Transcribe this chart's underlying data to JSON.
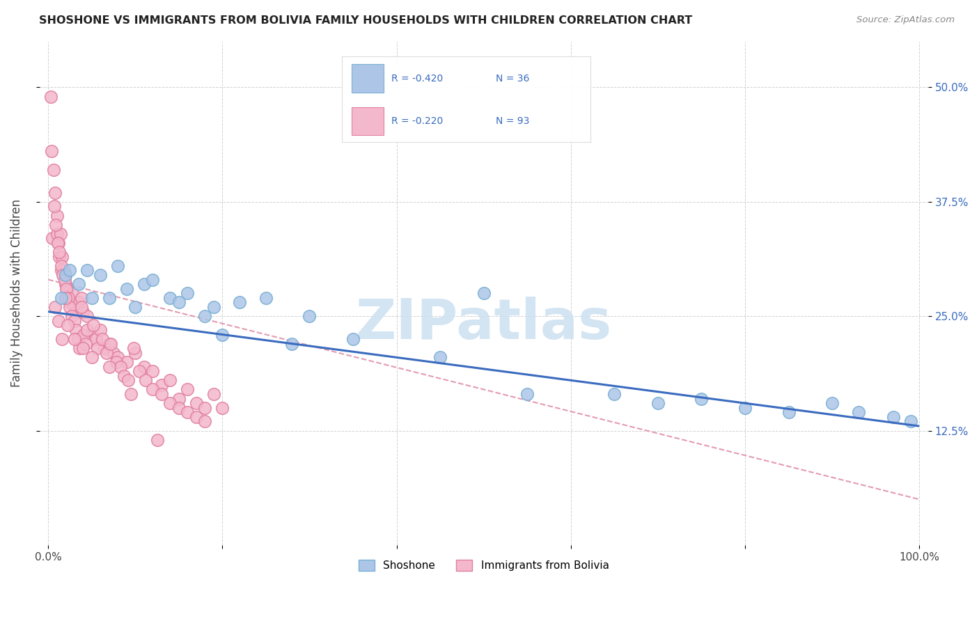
{
  "title": "SHOSHONE VS IMMIGRANTS FROM BOLIVIA FAMILY HOUSEHOLDS WITH CHILDREN CORRELATION CHART",
  "source": "Source: ZipAtlas.com",
  "ylabel": "Family Households with Children",
  "xlim": [
    -1,
    101
  ],
  "ylim": [
    0,
    55
  ],
  "yticks": [
    12.5,
    25.0,
    37.5,
    50.0
  ],
  "yticklabels": [
    "12.5%",
    "25.0%",
    "37.5%",
    "50.0%"
  ],
  "shoshone_color": "#adc6e8",
  "shoshone_edge": "#7aafd4",
  "bolivia_color": "#f4b8cc",
  "bolivia_edge": "#e080a0",
  "blue_line_color": "#3a6bbf",
  "pink_line_color": "#e090a8",
  "legend_color": "#3a6bbf",
  "watermark_color": "#cce0f0",
  "shoshone_x": [
    1.5,
    2.0,
    2.5,
    3.5,
    4.5,
    5.0,
    6.0,
    7.0,
    8.0,
    9.0,
    10.0,
    11.0,
    12.0,
    14.0,
    15.0,
    16.0,
    18.0,
    19.0,
    20.0,
    22.0,
    25.0,
    28.0,
    30.0,
    35.0,
    45.0,
    50.0,
    55.0,
    65.0,
    70.0,
    75.0,
    80.0,
    85.0,
    90.0,
    93.0,
    97.0,
    99.0
  ],
  "shoshone_y": [
    27.0,
    29.5,
    30.0,
    28.5,
    30.0,
    27.0,
    29.5,
    27.0,
    30.5,
    28.0,
    26.0,
    28.5,
    29.0,
    27.0,
    26.5,
    27.5,
    25.0,
    26.0,
    23.0,
    26.5,
    27.0,
    22.0,
    25.0,
    22.5,
    20.5,
    27.5,
    16.5,
    16.5,
    15.5,
    16.0,
    15.0,
    14.5,
    15.5,
    14.5,
    14.0,
    13.5
  ],
  "bolivia_x": [
    0.3,
    0.5,
    0.6,
    0.8,
    1.0,
    1.0,
    1.2,
    1.3,
    1.4,
    1.5,
    1.6,
    1.8,
    2.0,
    2.0,
    2.2,
    2.3,
    2.5,
    2.8,
    3.0,
    3.2,
    3.5,
    3.8,
    4.0,
    4.5,
    5.0,
    5.5,
    6.0,
    6.5,
    7.0,
    7.5,
    8.0,
    9.0,
    10.0,
    11.0,
    12.0,
    13.0,
    14.0,
    15.0,
    16.0,
    17.0,
    18.0,
    0.4,
    0.7,
    0.9,
    1.1,
    1.3,
    1.5,
    1.7,
    1.9,
    2.1,
    2.3,
    2.5,
    2.7,
    3.0,
    3.2,
    3.4,
    3.6,
    3.8,
    4.1,
    4.3,
    4.5,
    5.2,
    5.7,
    6.2,
    6.7,
    7.2,
    7.8,
    8.3,
    8.7,
    9.2,
    9.8,
    10.5,
    11.2,
    12.0,
    13.0,
    14.0,
    15.0,
    16.0,
    17.0,
    18.0,
    19.0,
    20.0,
    2.0,
    0.8,
    1.2,
    1.6,
    2.2,
    3.0,
    4.0,
    5.0,
    7.0,
    9.5,
    12.5
  ],
  "bolivia_y": [
    49.0,
    33.5,
    41.0,
    38.5,
    36.0,
    34.0,
    33.0,
    31.5,
    34.0,
    30.0,
    31.5,
    30.0,
    29.5,
    28.5,
    28.0,
    27.0,
    26.5,
    27.5,
    26.0,
    25.5,
    26.5,
    27.0,
    25.5,
    25.0,
    23.0,
    22.5,
    23.5,
    21.5,
    22.0,
    21.0,
    20.5,
    20.0,
    21.0,
    19.5,
    19.0,
    17.5,
    18.0,
    16.0,
    17.0,
    15.5,
    15.0,
    43.0,
    37.0,
    35.0,
    33.0,
    32.0,
    30.5,
    29.5,
    29.0,
    28.0,
    27.0,
    26.0,
    25.0,
    24.5,
    23.5,
    22.5,
    21.5,
    26.0,
    23.0,
    22.0,
    23.5,
    24.0,
    21.5,
    22.5,
    21.0,
    22.0,
    20.0,
    19.5,
    18.5,
    18.0,
    21.5,
    19.0,
    18.0,
    17.0,
    16.5,
    15.5,
    15.0,
    14.5,
    14.0,
    13.5,
    16.5,
    15.0,
    27.0,
    26.0,
    24.5,
    22.5,
    24.0,
    22.5,
    21.5,
    20.5,
    19.5,
    16.5,
    11.5
  ]
}
